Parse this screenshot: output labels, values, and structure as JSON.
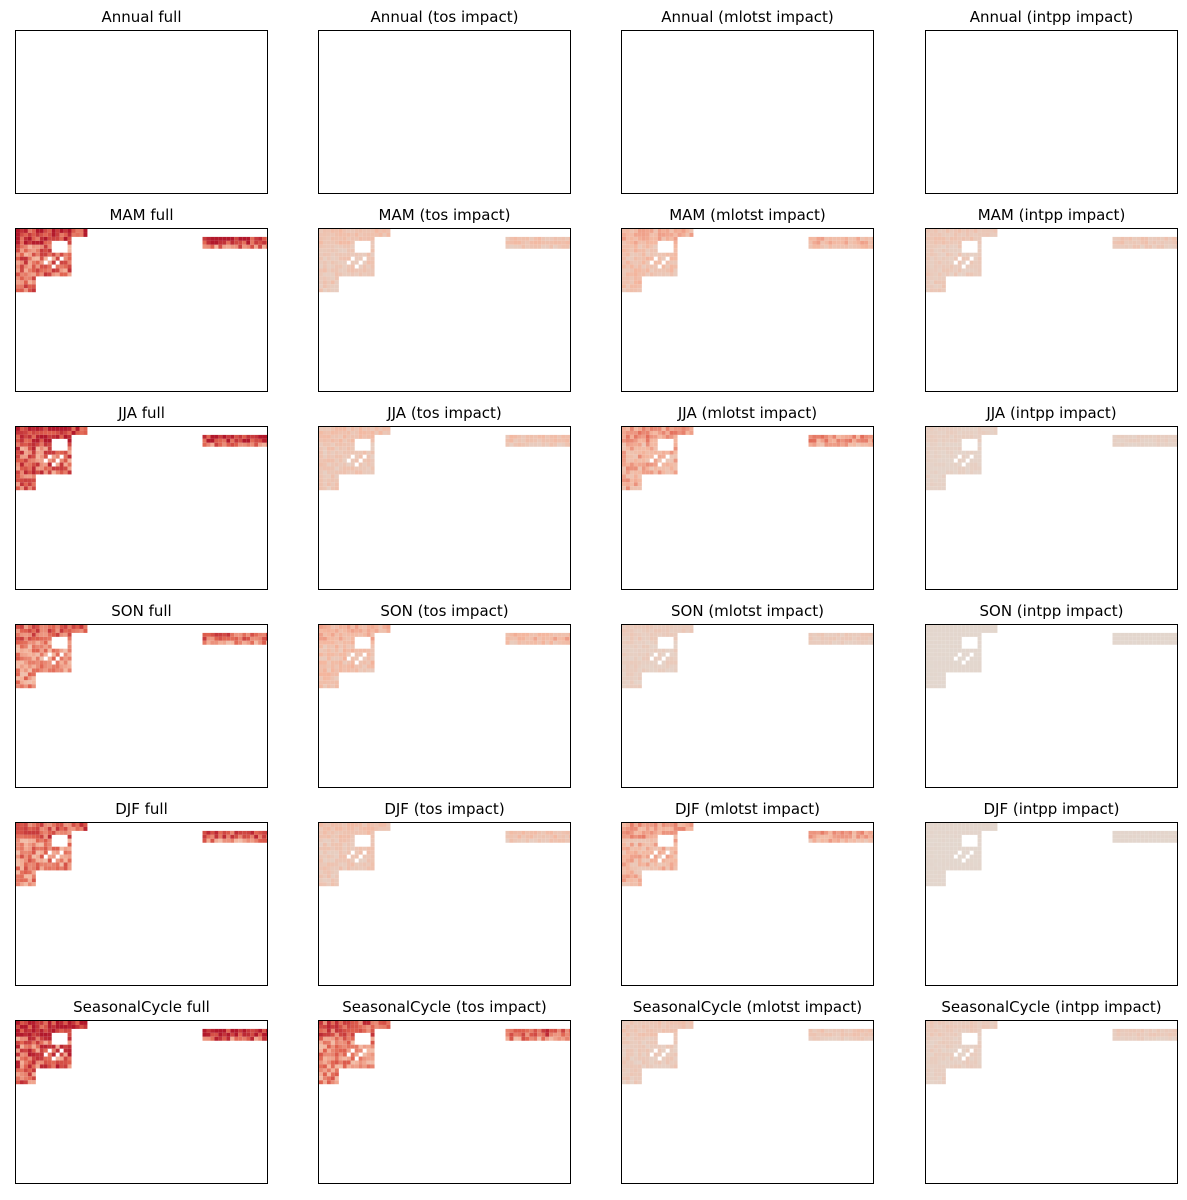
{
  "chart_data": [
    {
      "type": "heatmap",
      "title": "Annual full",
      "intensity": 0
    },
    {
      "type": "heatmap",
      "title": "Annual (tos impact)",
      "intensity": 0
    },
    {
      "type": "heatmap",
      "title": "Annual (mlotst impact)",
      "intensity": 0
    },
    {
      "type": "heatmap",
      "title": "Annual (intpp impact)",
      "intensity": 0
    },
    {
      "type": "heatmap",
      "title": "MAM full",
      "intensity": 0.9
    },
    {
      "type": "heatmap",
      "title": "MAM (tos impact)",
      "intensity": 0.25
    },
    {
      "type": "heatmap",
      "title": "MAM (mlotst impact)",
      "intensity": 0.35
    },
    {
      "type": "heatmap",
      "title": "MAM (intpp impact)",
      "intensity": 0.2
    },
    {
      "type": "heatmap",
      "title": "JJA full",
      "intensity": 0.95
    },
    {
      "type": "heatmap",
      "title": "JJA (tos impact)",
      "intensity": 0.25
    },
    {
      "type": "heatmap",
      "title": "JJA (mlotst impact)",
      "intensity": 0.5
    },
    {
      "type": "heatmap",
      "title": "JJA (intpp impact)",
      "intensity": 0.1
    },
    {
      "type": "heatmap",
      "title": "SON full",
      "intensity": 0.7
    },
    {
      "type": "heatmap",
      "title": "SON (tos impact)",
      "intensity": 0.35
    },
    {
      "type": "heatmap",
      "title": "SON (mlotst impact)",
      "intensity": 0.15
    },
    {
      "type": "heatmap",
      "title": "SON (intpp impact)",
      "intensity": 0.02
    },
    {
      "type": "heatmap",
      "title": "DJF full",
      "intensity": 0.75
    },
    {
      "type": "heatmap",
      "title": "DJF (tos impact)",
      "intensity": 0.25
    },
    {
      "type": "heatmap",
      "title": "DJF (mlotst impact)",
      "intensity": 0.45
    },
    {
      "type": "heatmap",
      "title": "DJF (intpp impact)",
      "intensity": 0.03
    },
    {
      "type": "heatmap",
      "title": "SeasonalCycle full",
      "intensity": 1.0
    },
    {
      "type": "heatmap",
      "title": "SeasonalCycle (tos impact)",
      "intensity": 0.75
    },
    {
      "type": "heatmap",
      "title": "SeasonalCycle (mlotst impact)",
      "intensity": 0.2
    },
    {
      "type": "heatmap",
      "title": "SeasonalCycle (intpp impact)",
      "intensity": 0.15
    }
  ],
  "colors": {
    "neutral": "#e2d8d0",
    "light": "#f4b79f",
    "mid": "#e0624f",
    "strong": "#b2182b"
  }
}
